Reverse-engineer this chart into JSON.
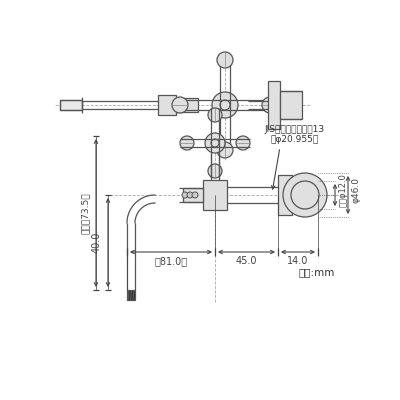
{
  "bg_color": "#ffffff",
  "line_color": "#555555",
  "dim_color": "#555555",
  "text_color": "#333333",
  "fig_width": 4.0,
  "fig_height": 4.0,
  "dpi": 100,
  "annotations": {
    "jis_label": "JIS給水栓取付ねじ13",
    "jis_sub": "（φ20.955）",
    "dim_81": "（81.0）",
    "dim_45": "45.0",
    "dim_14": "14.0",
    "dim_40": "40.0",
    "dim_73_5": "（最夤73.5）",
    "dim_inner": "内径φ12.0",
    "dim_outer": "φ46.0",
    "unit": "単位:mm"
  }
}
